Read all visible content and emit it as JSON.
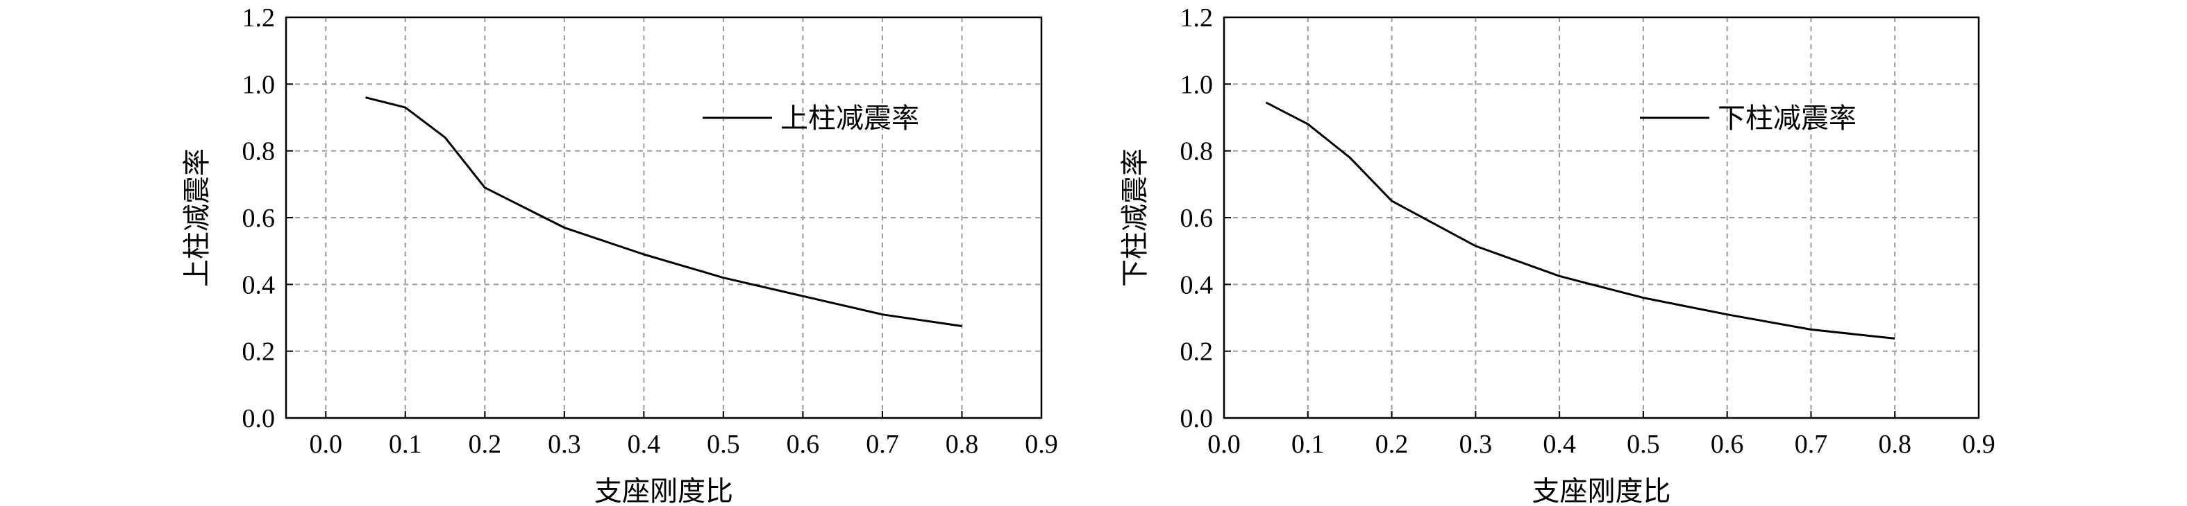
{
  "chart_data": [
    {
      "type": "line",
      "title": "",
      "xlabel": "支座刚度比",
      "ylabel": "上柱减震率",
      "xlim": [
        -0.05,
        0.9
      ],
      "ylim": [
        0.0,
        1.2
      ],
      "xticks": [
        "0.0",
        "0.1",
        "0.2",
        "0.3",
        "0.4",
        "0.5",
        "0.6",
        "0.7",
        "0.8",
        "0.9"
      ],
      "yticks": [
        "0.0",
        "0.2",
        "0.4",
        "0.6",
        "0.8",
        "1.0",
        "1.2"
      ],
      "grid": true,
      "legend_position": "top-right",
      "series": [
        {
          "name": "上柱减震率",
          "x": [
            0.05,
            0.1,
            0.15,
            0.2,
            0.3,
            0.4,
            0.5,
            0.6,
            0.7,
            0.8
          ],
          "y": [
            0.96,
            0.93,
            0.84,
            0.69,
            0.57,
            0.49,
            0.42,
            0.365,
            0.31,
            0.275
          ]
        }
      ]
    },
    {
      "type": "line",
      "title": "",
      "xlabel": "支座刚度比",
      "ylabel": "下柱减震率",
      "xlim": [
        0.0,
        0.9
      ],
      "ylim": [
        0.0,
        1.2
      ],
      "xticks": [
        "0.0",
        "0.1",
        "0.2",
        "0.3",
        "0.4",
        "0.5",
        "0.6",
        "0.7",
        "0.8",
        "0.9"
      ],
      "yticks": [
        "0.0",
        "0.2",
        "0.4",
        "0.6",
        "0.8",
        "1.0",
        "1.2"
      ],
      "grid": true,
      "legend_position": "top-right",
      "series": [
        {
          "name": "下柱减震率",
          "x": [
            0.05,
            0.1,
            0.15,
            0.2,
            0.3,
            0.4,
            0.5,
            0.6,
            0.7,
            0.8
          ],
          "y": [
            0.945,
            0.88,
            0.78,
            0.65,
            0.515,
            0.425,
            0.36,
            0.31,
            0.265,
            0.238
          ]
        }
      ]
    }
  ]
}
